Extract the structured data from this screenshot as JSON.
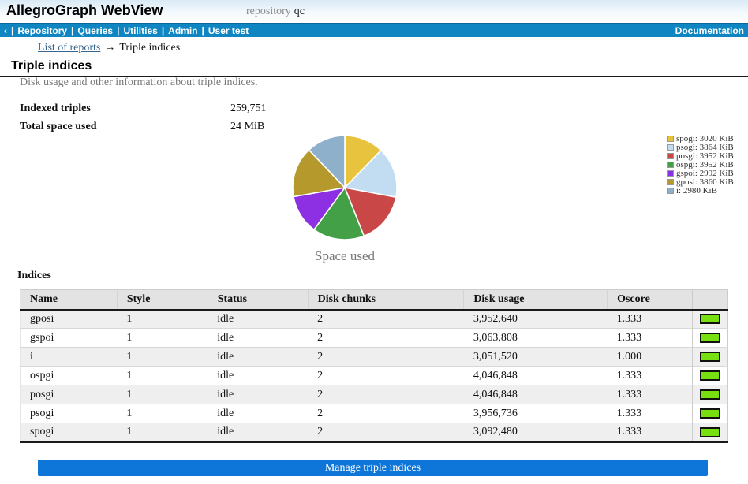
{
  "header": {
    "app_title": "AllegroGraph WebView",
    "repo_label": "repository",
    "repo_name": "qc"
  },
  "nav": {
    "back": "‹",
    "separator": "|",
    "items": [
      "Repository",
      "Queries",
      "Utilities",
      "Admin",
      "User test"
    ],
    "right": "Documentation"
  },
  "breadcrumb": {
    "link": "List of reports",
    "arrow": "→",
    "current": "Triple indices"
  },
  "page": {
    "title": "Triple indices",
    "description": "Disk usage and other information about triple indices.",
    "stats": [
      {
        "label": "Indexed triples",
        "value": "259,751"
      },
      {
        "label": "Total space used",
        "value": "24 MiB"
      }
    ]
  },
  "chart_data": {
    "type": "pie",
    "title": "Space used",
    "unit": "KiB",
    "start_angle_deg": 0,
    "direction": "clockwise",
    "legend_position": "right",
    "slices": [
      {
        "label": "spogi",
        "value": 3020,
        "color": "#e8c33e"
      },
      {
        "label": "psogi",
        "value": 3864,
        "color": "#c2dcf2"
      },
      {
        "label": "posgi",
        "value": 3952,
        "color": "#c94747"
      },
      {
        "label": "ospgi",
        "value": 3952,
        "color": "#43a047"
      },
      {
        "label": "gspoi",
        "value": 2992,
        "color": "#8d2fe2"
      },
      {
        "label": "gposi",
        "value": 3860,
        "color": "#b5992c"
      },
      {
        "label": "i",
        "value": 2980,
        "color": "#8fb0ca"
      }
    ]
  },
  "table": {
    "caption": "Indices",
    "columns": [
      "Name",
      "Style",
      "Status",
      "Disk chunks",
      "Disk usage",
      "Oscore"
    ],
    "sorted_by": "Name",
    "bar_color": "#78e011",
    "rows": [
      {
        "name": "gposi",
        "style": "1",
        "status": "idle",
        "chunks": "2",
        "usage": "3,952,640",
        "oscore": "1.333"
      },
      {
        "name": "gspoi",
        "style": "1",
        "status": "idle",
        "chunks": "2",
        "usage": "3,063,808",
        "oscore": "1.333"
      },
      {
        "name": "i",
        "style": "1",
        "status": "idle",
        "chunks": "2",
        "usage": "3,051,520",
        "oscore": "1.000"
      },
      {
        "name": "ospgi",
        "style": "1",
        "status": "idle",
        "chunks": "2",
        "usage": "4,046,848",
        "oscore": "1.333"
      },
      {
        "name": "posgi",
        "style": "1",
        "status": "idle",
        "chunks": "2",
        "usage": "4,046,848",
        "oscore": "1.333"
      },
      {
        "name": "psogi",
        "style": "1",
        "status": "idle",
        "chunks": "2",
        "usage": "3,956,736",
        "oscore": "1.333"
      },
      {
        "name": "spogi",
        "style": "1",
        "status": "idle",
        "chunks": "2",
        "usage": "3,092,480",
        "oscore": "1.333"
      }
    ]
  },
  "footer": {
    "manage_button": "Manage triple indices"
  }
}
